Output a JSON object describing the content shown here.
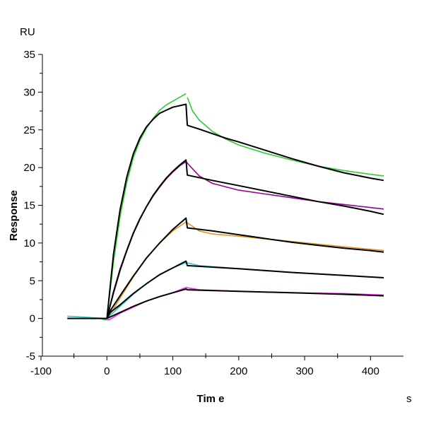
{
  "chart_data": {
    "type": "line",
    "title": "",
    "xlabel": "Tim e",
    "xunit": "s",
    "ylabel": "Response",
    "yunit": "RU",
    "xlim": [
      -100,
      450
    ],
    "ylim": [
      -5,
      35
    ],
    "xticks": [
      -100,
      0,
      100,
      200,
      300,
      400
    ],
    "yticks": [
      -5,
      0,
      5,
      10,
      15,
      20,
      25,
      30,
      35
    ],
    "grid": false,
    "legend": "none",
    "series": [
      {
        "kind": "data",
        "color": "#33cc33",
        "points": [
          [
            -60,
            0
          ],
          [
            -10,
            0
          ],
          [
            -2,
            -0.2
          ],
          [
            0,
            0
          ],
          [
            10,
            7.5
          ],
          [
            20,
            13.5
          ],
          [
            30,
            18.0
          ],
          [
            40,
            21.3
          ],
          [
            50,
            23.6
          ],
          [
            60,
            25.2
          ],
          [
            70,
            26.5
          ],
          [
            80,
            27.6
          ],
          [
            90,
            28.3
          ],
          [
            100,
            28.8
          ],
          [
            110,
            29.3
          ],
          [
            120,
            29.8
          ]
        ]
      },
      {
        "kind": "data",
        "color": "#33cc33",
        "points": [
          [
            122,
            29.3
          ],
          [
            130,
            27.5
          ],
          [
            140,
            26.3
          ],
          [
            160,
            24.8
          ],
          [
            180,
            23.8
          ],
          [
            200,
            23.0
          ],
          [
            240,
            21.9
          ],
          [
            280,
            21.0
          ],
          [
            320,
            20.2
          ],
          [
            360,
            19.6
          ],
          [
            400,
            19.1
          ],
          [
            420,
            18.9
          ]
        ]
      },
      {
        "kind": "data",
        "color": "#990099",
        "points": [
          [
            0,
            0
          ],
          [
            10,
            3.3
          ],
          [
            20,
            6.3
          ],
          [
            30,
            8.9
          ],
          [
            40,
            11.2
          ],
          [
            50,
            13.1
          ],
          [
            60,
            14.8
          ],
          [
            70,
            16.2
          ],
          [
            80,
            17.4
          ],
          [
            90,
            18.5
          ],
          [
            100,
            19.4
          ],
          [
            110,
            20.2
          ],
          [
            120,
            20.8
          ],
          [
            125,
            20.3
          ],
          [
            140,
            18.9
          ],
          [
            160,
            17.9
          ],
          [
            200,
            17.0
          ],
          [
            240,
            16.5
          ],
          [
            280,
            16.0
          ],
          [
            320,
            15.5
          ],
          [
            360,
            15.1
          ],
          [
            400,
            14.7
          ],
          [
            420,
            14.5
          ]
        ]
      },
      {
        "kind": "data",
        "color": "#dd9922",
        "points": [
          [
            0,
            0
          ],
          [
            10,
            1.2
          ],
          [
            20,
            2.7
          ],
          [
            40,
            5.5
          ],
          [
            60,
            8.0
          ],
          [
            80,
            10.0
          ],
          [
            100,
            11.6
          ],
          [
            120,
            12.8
          ],
          [
            125,
            12.5
          ],
          [
            140,
            11.6
          ],
          [
            160,
            11.2
          ],
          [
            200,
            10.9
          ],
          [
            280,
            10.2
          ],
          [
            360,
            9.5
          ],
          [
            420,
            9.0
          ]
        ]
      },
      {
        "kind": "data",
        "color": "#22cccc",
        "points": [
          [
            -60,
            0.3
          ],
          [
            -2,
            0
          ],
          [
            0,
            0
          ],
          [
            5,
            0.4
          ],
          [
            20,
            1.6
          ],
          [
            40,
            3.2
          ],
          [
            60,
            4.6
          ],
          [
            80,
            5.8
          ],
          [
            100,
            6.7
          ],
          [
            120,
            7.4
          ],
          [
            140,
            7.0
          ],
          [
            200,
            6.6
          ],
          [
            280,
            6.1
          ],
          [
            360,
            5.7
          ],
          [
            420,
            5.4
          ]
        ]
      },
      {
        "kind": "data",
        "color": "#ee22ee",
        "points": [
          [
            0,
            -0.2
          ],
          [
            5,
            -0.1
          ],
          [
            20,
            0.7
          ],
          [
            40,
            1.5
          ],
          [
            60,
            2.3
          ],
          [
            80,
            2.9
          ],
          [
            100,
            3.4
          ],
          [
            120,
            4.1
          ],
          [
            140,
            3.8
          ],
          [
            200,
            3.6
          ],
          [
            280,
            3.4
          ],
          [
            360,
            3.3
          ],
          [
            420,
            3.1
          ]
        ]
      },
      {
        "kind": "fit",
        "color": "#000000",
        "points": [
          [
            -60,
            0
          ],
          [
            0,
            0
          ],
          [
            10,
            8.5
          ],
          [
            20,
            14.4
          ],
          [
            30,
            18.7
          ],
          [
            40,
            21.8
          ],
          [
            50,
            23.9
          ],
          [
            60,
            25.4
          ],
          [
            70,
            26.4
          ],
          [
            80,
            27.2
          ],
          [
            90,
            27.6
          ],
          [
            100,
            28.0
          ],
          [
            110,
            28.2
          ],
          [
            120,
            28.4
          ],
          [
            122,
            25.6
          ],
          [
            140,
            25.1
          ],
          [
            160,
            24.5
          ],
          [
            180,
            23.9
          ],
          [
            200,
            23.4
          ],
          [
            240,
            22.3
          ],
          [
            280,
            21.2
          ],
          [
            320,
            20.2
          ],
          [
            360,
            19.3
          ],
          [
            400,
            18.6
          ],
          [
            420,
            18.3
          ]
        ]
      },
      {
        "kind": "fit",
        "color": "#000000",
        "points": [
          [
            0,
            0
          ],
          [
            10,
            3.5
          ],
          [
            20,
            6.5
          ],
          [
            30,
            9.0
          ],
          [
            40,
            11.3
          ],
          [
            50,
            13.2
          ],
          [
            60,
            14.8
          ],
          [
            70,
            16.3
          ],
          [
            80,
            17.5
          ],
          [
            90,
            18.6
          ],
          [
            100,
            19.5
          ],
          [
            110,
            20.3
          ],
          [
            120,
            21.0
          ],
          [
            122,
            19.0
          ],
          [
            160,
            18.3
          ],
          [
            200,
            17.6
          ],
          [
            240,
            16.9
          ],
          [
            280,
            16.2
          ],
          [
            320,
            15.5
          ],
          [
            360,
            14.9
          ],
          [
            400,
            14.2
          ],
          [
            420,
            13.8
          ]
        ]
      },
      {
        "kind": "fit",
        "color": "#000000",
        "points": [
          [
            0,
            0
          ],
          [
            5,
            1.0
          ],
          [
            20,
            3.0
          ],
          [
            40,
            5.6
          ],
          [
            60,
            8.0
          ],
          [
            80,
            10.0
          ],
          [
            100,
            11.8
          ],
          [
            120,
            13.3
          ],
          [
            122,
            12.0
          ],
          [
            160,
            11.6
          ],
          [
            200,
            11.1
          ],
          [
            240,
            10.6
          ],
          [
            280,
            10.1
          ],
          [
            320,
            9.7
          ],
          [
            360,
            9.3
          ],
          [
            400,
            9.0
          ],
          [
            420,
            8.8
          ]
        ]
      },
      {
        "kind": "fit",
        "color": "#000000",
        "points": [
          [
            0,
            0
          ],
          [
            5,
            0.8
          ],
          [
            20,
            1.8
          ],
          [
            40,
            3.3
          ],
          [
            60,
            4.6
          ],
          [
            80,
            5.8
          ],
          [
            100,
            6.7
          ],
          [
            120,
            7.6
          ],
          [
            122,
            7.0
          ],
          [
            200,
            6.6
          ],
          [
            280,
            6.1
          ],
          [
            360,
            5.7
          ],
          [
            420,
            5.4
          ]
        ]
      },
      {
        "kind": "fit",
        "color": "#000000",
        "points": [
          [
            0,
            0
          ],
          [
            20,
            0.8
          ],
          [
            40,
            1.6
          ],
          [
            60,
            2.3
          ],
          [
            80,
            2.9
          ],
          [
            100,
            3.4
          ],
          [
            120,
            3.9
          ],
          [
            122,
            3.8
          ],
          [
            200,
            3.6
          ],
          [
            280,
            3.4
          ],
          [
            360,
            3.2
          ],
          [
            420,
            3.0
          ]
        ]
      }
    ]
  }
}
